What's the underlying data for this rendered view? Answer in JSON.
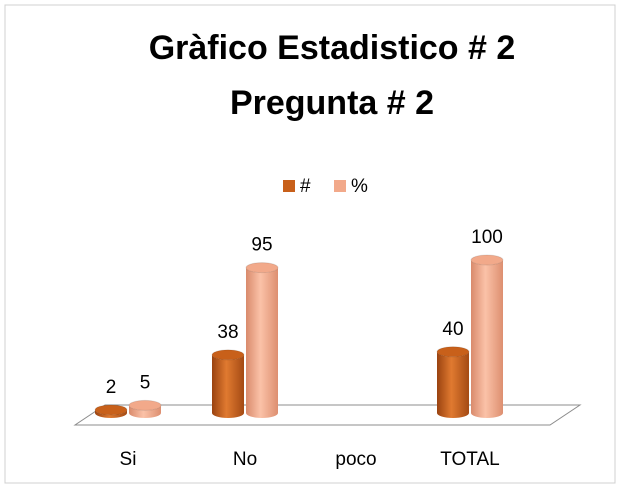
{
  "chart_data": {
    "type": "bar3d",
    "title": [
      "Gràfico Estadistico # 2",
      "Pregunta # 2"
    ],
    "categories": [
      "Si",
      "No",
      "poco",
      "TOTAL"
    ],
    "series": [
      {
        "name": "#",
        "color": "#c8601a",
        "values": [
          2,
          38,
          null,
          40
        ]
      },
      {
        "name": "%",
        "color": "#f2a98a",
        "values": [
          5,
          95,
          null,
          100
        ]
      }
    ],
    "legend": "top"
  }
}
